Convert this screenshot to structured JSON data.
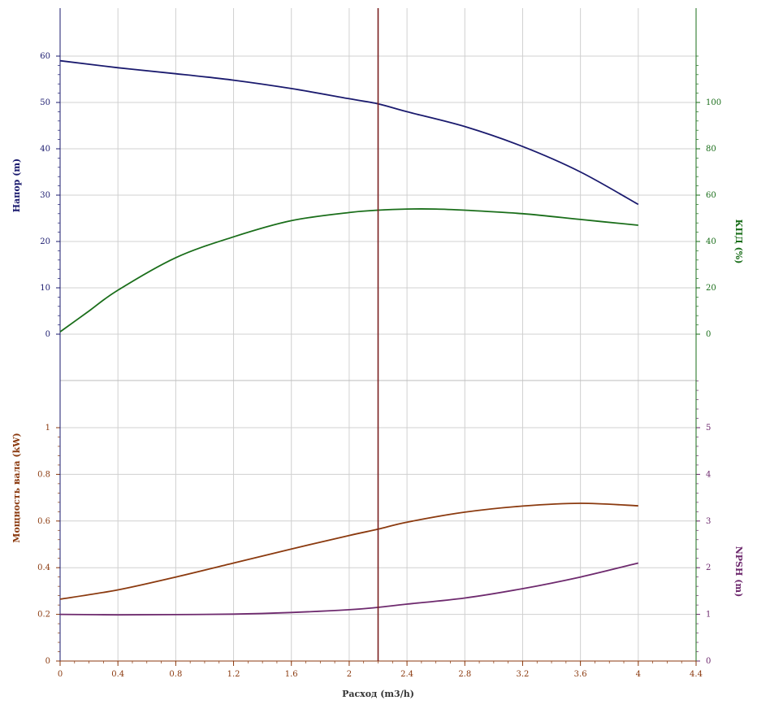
{
  "chart_data": {
    "type": "line",
    "xlabel": "Расход (m3/h)",
    "xlim": [
      0,
      4.4
    ],
    "x_ticks": [
      0,
      0.4,
      0.8,
      1.2,
      1.6,
      2,
      2.4,
      2.8,
      3.2,
      3.6,
      4,
      4.4
    ],
    "x_tick_labels": [
      "0",
      "0.4",
      "0.8",
      "1.2",
      "1.6",
      "2",
      "2.4",
      "2.8",
      "3.2",
      "3.6",
      "4",
      "4.4"
    ],
    "operating_point_x": 2.2,
    "grid": true,
    "colors": {
      "head": "#1a1a6e",
      "efficiency": "#1a6e1a",
      "power": "#8b3a0f",
      "npsh": "#6e2a6e",
      "operating_line": "#7a1f1f",
      "grid": "#d0d0d0"
    },
    "panels": [
      {
        "name": "top",
        "left_axis": {
          "label": "Напор (m)",
          "lim": [
            0,
            70
          ],
          "ticks": [
            0,
            10,
            20,
            30,
            40,
            50,
            60
          ],
          "tick_labels": [
            "0",
            "10",
            "20",
            "30",
            "40",
            "50",
            "60"
          ],
          "color": "#1a1a6e"
        },
        "right_axis": {
          "label": "КПД (%)",
          "lim": [
            0,
            140
          ],
          "ticks": [
            0,
            20,
            40,
            60,
            80,
            100
          ],
          "tick_labels": [
            "0",
            "20",
            "40",
            "60",
            "80",
            "100"
          ],
          "color": "#1a6e1a"
        },
        "series": [
          {
            "key": "head",
            "axis": "left",
            "x": [
              0,
              0.4,
              0.8,
              1.2,
              1.6,
              2.0,
              2.2,
              2.4,
              2.8,
              3.2,
              3.6,
              4.0
            ],
            "y": [
              59,
              57.5,
              56.2,
              54.8,
              53.0,
              50.8,
              49.7,
              48.0,
              44.8,
              40.5,
              35.0,
              28.0
            ]
          },
          {
            "key": "efficiency",
            "axis": "right",
            "x": [
              0,
              0.2,
              0.4,
              0.8,
              1.2,
              1.6,
              2.0,
              2.2,
              2.4,
              2.6,
              2.8,
              3.2,
              3.6,
              4.0
            ],
            "y": [
              1,
              10,
              19,
              33,
              42,
              49,
              52.5,
              53.5,
              54,
              54,
              53.5,
              52,
              49.5,
              47
            ]
          }
        ]
      },
      {
        "name": "bottom",
        "left_axis": {
          "label": "Мощность вала (kW)",
          "lim": [
            0,
            1.2
          ],
          "ticks": [
            0,
            0.2,
            0.4,
            0.6,
            0.8,
            1
          ],
          "tick_labels": [
            "0",
            "0.2",
            "0.4",
            "0.6",
            "0.8",
            "1"
          ],
          "color": "#8b3a0f"
        },
        "right_axis": {
          "label": "NPSH (m)",
          "lim": [
            0,
            6
          ],
          "ticks": [
            0,
            1,
            2,
            3,
            4,
            5
          ],
          "tick_labels": [
            "0",
            "1",
            "2",
            "3",
            "4",
            "5"
          ],
          "color": "#6e2a6e"
        },
        "series": [
          {
            "key": "power",
            "axis": "left",
            "x": [
              0,
              0.4,
              0.8,
              1.2,
              1.6,
              2.0,
              2.2,
              2.4,
              2.8,
              3.2,
              3.6,
              4.0
            ],
            "y": [
              0.265,
              0.305,
              0.36,
              0.42,
              0.48,
              0.538,
              0.565,
              0.595,
              0.638,
              0.664,
              0.676,
              0.665
            ]
          },
          {
            "key": "npsh",
            "axis": "right",
            "x": [
              0,
              0.4,
              0.8,
              1.2,
              1.6,
              2.0,
              2.2,
              2.4,
              2.8,
              3.2,
              3.6,
              4.0
            ],
            "y": [
              1.0,
              0.99,
              0.995,
              1.005,
              1.04,
              1.1,
              1.15,
              1.22,
              1.35,
              1.55,
              1.8,
              2.1
            ]
          }
        ]
      }
    ]
  }
}
